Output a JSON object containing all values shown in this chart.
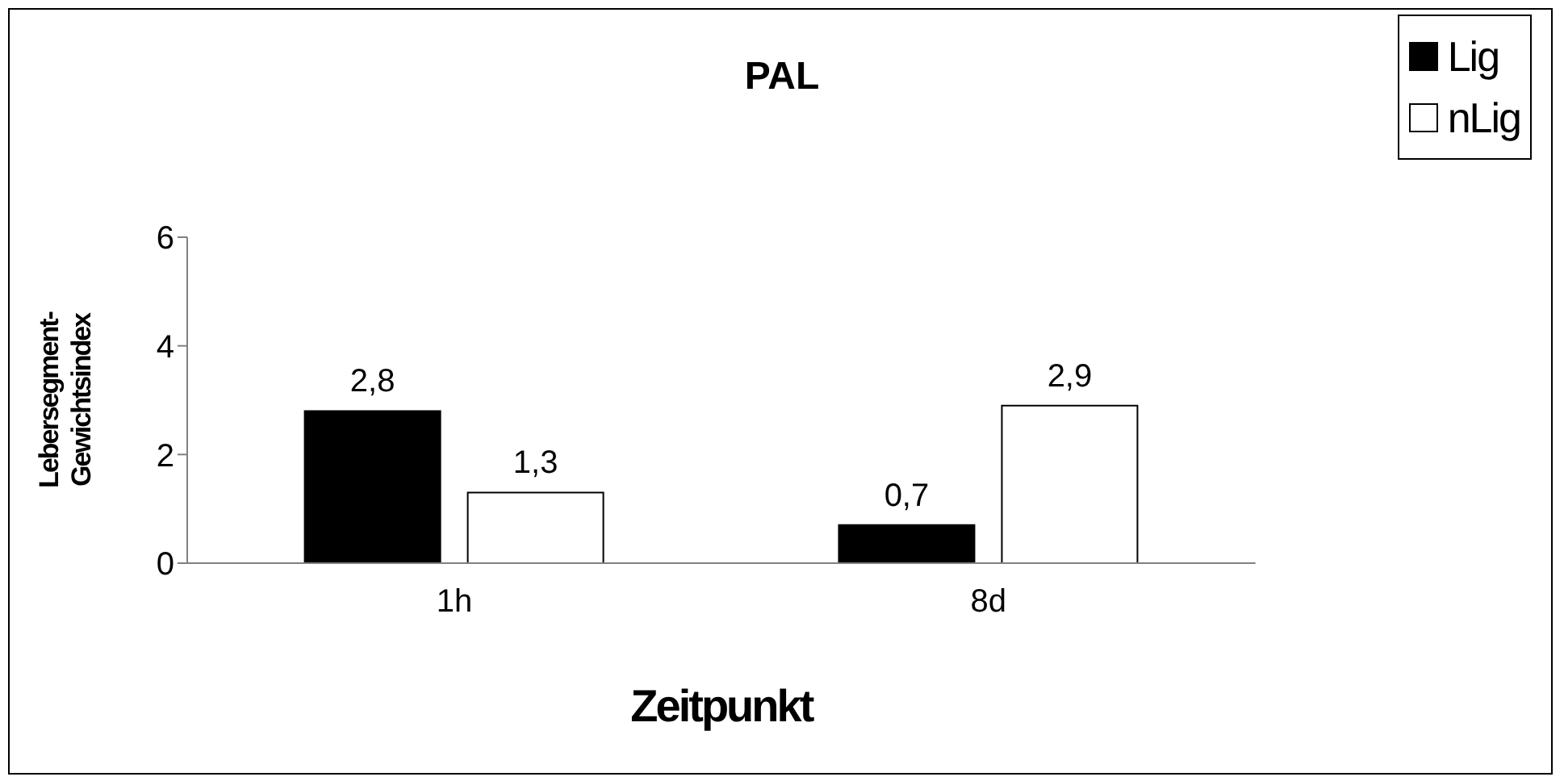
{
  "chart_data": {
    "type": "bar",
    "title": "PAL",
    "xlabel": "Zeitpunkt",
    "ylabel": "Lebersegment-Gewichtsindex",
    "categories": [
      "1h",
      "8d"
    ],
    "series": [
      {
        "name": "Lig",
        "color": "#000000",
        "values": [
          2.8,
          0.7
        ],
        "value_labels": [
          "2,8",
          "0,7"
        ]
      },
      {
        "name": "nLig",
        "color": "#ffffff",
        "values": [
          1.3,
          2.9
        ],
        "value_labels": [
          "1,3",
          "2,9"
        ]
      }
    ],
    "ylim": [
      0,
      6
    ],
    "yticks": [
      0,
      2,
      4,
      6
    ],
    "grid": false,
    "legend": "top right"
  }
}
